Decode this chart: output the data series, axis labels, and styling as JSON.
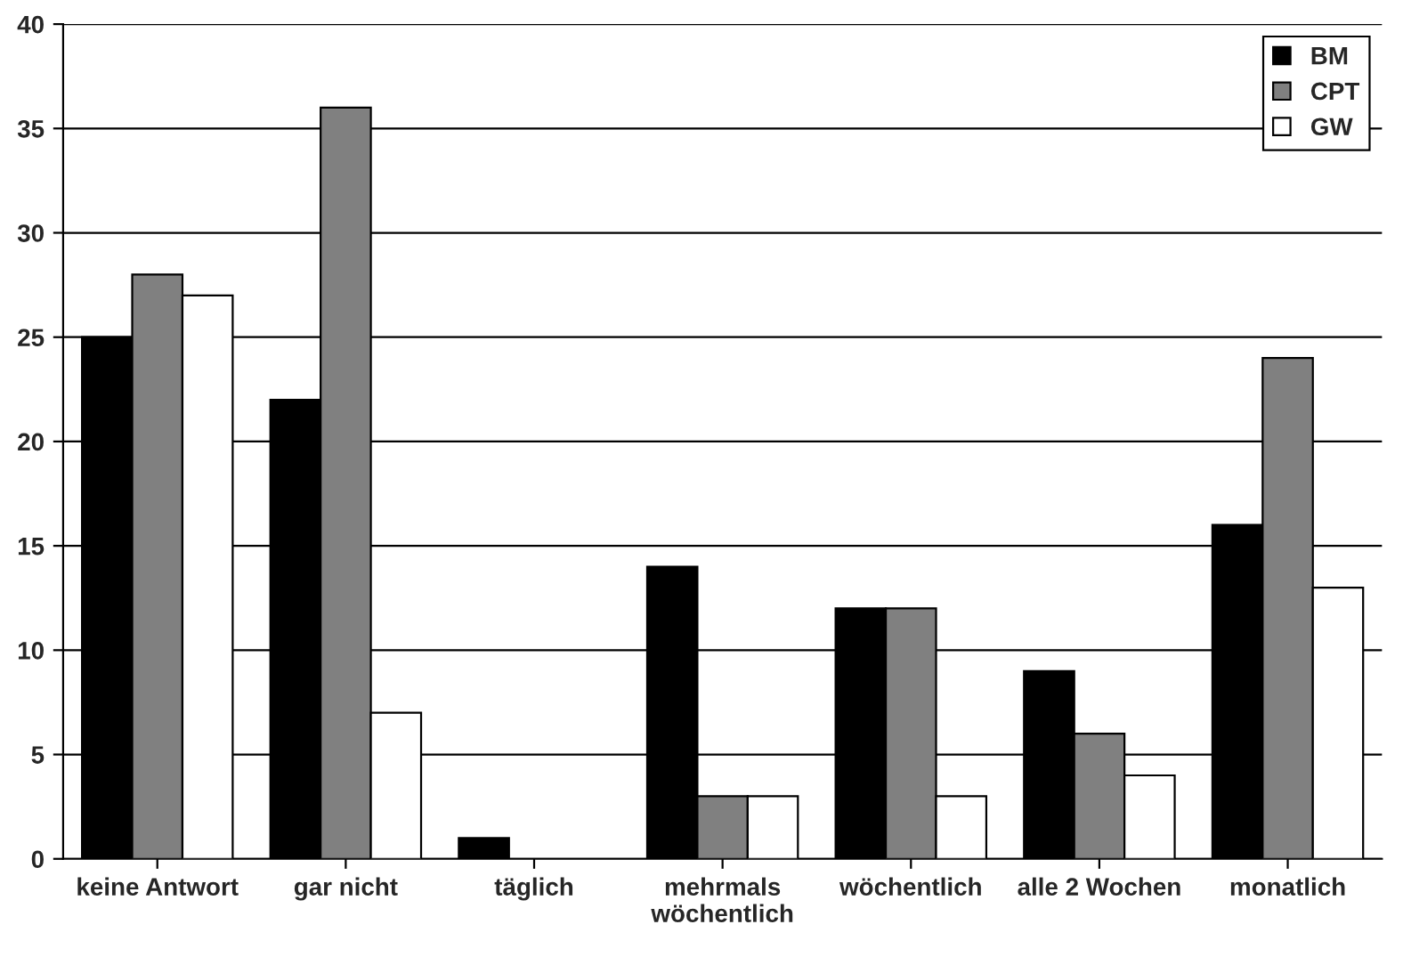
{
  "chart_data": {
    "type": "bar",
    "categories": [
      "keine Antwort",
      "gar nicht",
      "täglich",
      "mehrmals\nwöchentlich",
      "wöchentlich",
      "alle 2 Wochen",
      "monatlich"
    ],
    "series": [
      {
        "name": "BM",
        "color": "#000000",
        "values": [
          25,
          22,
          1,
          14,
          12,
          9,
          16
        ]
      },
      {
        "name": "CPT",
        "color": "#808080",
        "values": [
          28,
          36,
          0,
          3,
          12,
          6,
          24
        ]
      },
      {
        "name": "GW",
        "color": "#ffffff",
        "values": [
          27,
          7,
          0,
          3,
          3,
          4,
          13
        ]
      }
    ],
    "ylim": [
      0,
      40
    ],
    "yticks": [
      0,
      5,
      10,
      15,
      20,
      25,
      30,
      35,
      40
    ],
    "grid": "y",
    "legend": "top right"
  }
}
